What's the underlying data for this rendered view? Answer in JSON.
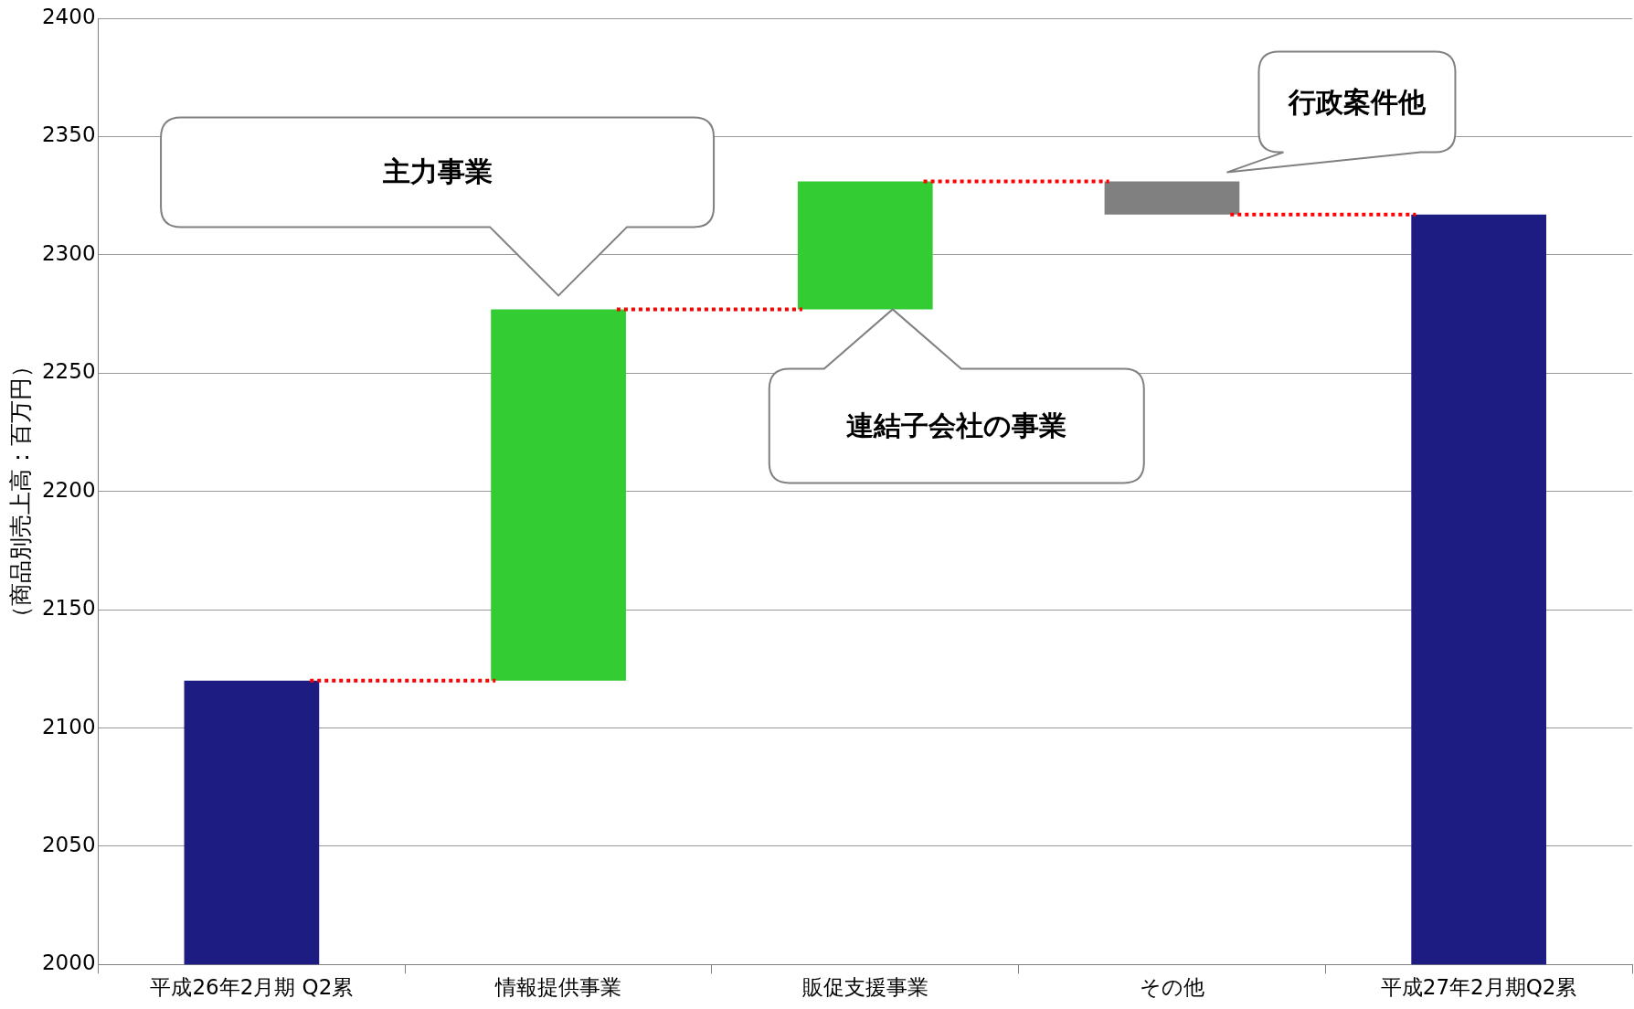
{
  "chart_data": {
    "type": "bar",
    "ylabel": "（商品別売上高：百万円）",
    "categories": [
      "平成26年2月期 Q2累",
      "情報提供事業",
      "販促支援事業",
      "その他",
      "平成27年2月期Q2累"
    ],
    "values": [
      2120,
      157,
      54,
      -14,
      2317
    ],
    "base": [
      null,
      2120,
      2277,
      2331,
      null
    ],
    "colors": [
      "#1c1c82",
      "#33cc33",
      "#33cc33",
      "#808080",
      "#1c1c82"
    ],
    "ylim": [
      2000,
      2400
    ],
    "yticks": [
      2000,
      2050,
      2100,
      2150,
      2200,
      2250,
      2300,
      2350,
      2400
    ],
    "grid": "y",
    "legend": false,
    "ref_lines": [
      {
        "axis": "y",
        "value": 2120,
        "color": "#ff0000",
        "line_style": "dotted"
      },
      {
        "axis": "y",
        "value": 2277,
        "color": "#ff0000",
        "line_style": "dotted"
      },
      {
        "axis": "y",
        "value": 2331,
        "color": "#ff0000",
        "line_style": "dotted"
      },
      {
        "axis": "y",
        "value": 2317,
        "color": "#ff0000",
        "line_style": "dotted"
      }
    ],
    "annotations": [
      "主力事業",
      "連結子会社の事業",
      "行政案件他"
    ]
  }
}
